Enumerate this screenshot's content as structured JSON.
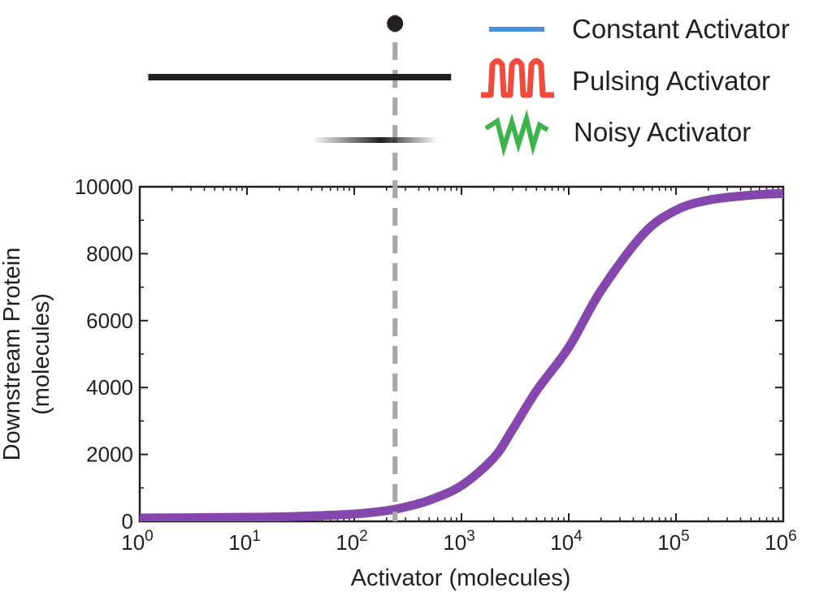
{
  "chart_data": {
    "type": "line",
    "xlabel": "Activator (molecules)",
    "ylabel": "Downstream Protein",
    "ylabel_line2": "(molecules)",
    "x_scale": "log",
    "xlim": [
      1,
      1000000
    ],
    "ylim": [
      0,
      10000
    ],
    "x_ticks": [
      {
        "value": 1,
        "base": "10",
        "exp": "0"
      },
      {
        "value": 10,
        "base": "10",
        "exp": "1"
      },
      {
        "value": 100,
        "base": "10",
        "exp": "2"
      },
      {
        "value": 1000,
        "base": "10",
        "exp": "3"
      },
      {
        "value": 10000,
        "base": "10",
        "exp": "4"
      },
      {
        "value": 100000,
        "base": "10",
        "exp": "5"
      },
      {
        "value": 1000000,
        "base": "10",
        "exp": "6"
      }
    ],
    "y_ticks": [
      {
        "value": 0,
        "label": "0"
      },
      {
        "value": 2000,
        "label": "2000"
      },
      {
        "value": 4000,
        "label": "4000"
      },
      {
        "value": 6000,
        "label": "6000"
      },
      {
        "value": 8000,
        "label": "8000"
      },
      {
        "value": 10000,
        "label": "10000"
      }
    ],
    "grid": false,
    "series": [
      {
        "color": "#8547ad",
        "x": [
          1,
          10,
          30,
          100,
          200,
          300,
          500,
          1000,
          2000,
          3000,
          5000,
          10000,
          20000,
          50000,
          100000,
          200000,
          500000,
          1000000
        ],
        "y": [
          100,
          120,
          150,
          220,
          320,
          430,
          630,
          1070,
          1900,
          2750,
          3900,
          5200,
          6900,
          8600,
          9300,
          9600,
          9750,
          9800
        ]
      }
    ],
    "reference_line": {
      "x": 240,
      "color": "#a8a8a8",
      "style": "dashed"
    },
    "activator_markers": [
      {
        "kind": "point",
        "x": 240
      },
      {
        "kind": "range",
        "x_min": 1.2,
        "x_max": 800
      },
      {
        "kind": "gradient",
        "x_min": 40,
        "x_max": 600,
        "peak_x": 150
      }
    ],
    "legend": {
      "position": "top-right",
      "entries": [
        {
          "label": "Constant Activator",
          "color": "#4a90d9",
          "glyph": "flat-line"
        },
        {
          "label": "Pulsing Activator",
          "color": "#ef4b3c",
          "glyph": "pulse-wave"
        },
        {
          "label": "Noisy Activator",
          "color": "#3cb44b",
          "glyph": "zigzag"
        }
      ]
    }
  }
}
